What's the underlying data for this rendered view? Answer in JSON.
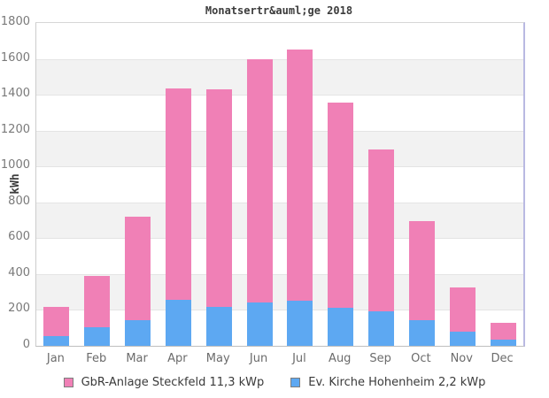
{
  "chart_data": {
    "type": "bar",
    "stacked": true,
    "title": "Monatsertr&auml;ge 2018",
    "ylabel": "kWh",
    "xlabel": "",
    "ylim": [
      0,
      1800
    ],
    "ytick_step": 200,
    "ytick_labels": [
      "0",
      "200",
      "400",
      "600",
      "800",
      "1000",
      "1200",
      "1400",
      "1600",
      "1800"
    ],
    "grid": true,
    "legend_position": "bottom",
    "categories": [
      "Jan",
      "Feb",
      "Mar",
      "Apr",
      "May",
      "Jun",
      "Jul",
      "Aug",
      "Sep",
      "Oct",
      "Nov",
      "Dec"
    ],
    "series": [
      {
        "name": "GbR-Anlage Steckfeld 11,3 kWp",
        "color": "#f080b6",
        "values": [
          160,
          285,
          575,
          1180,
          1215,
          1360,
          1400,
          1145,
          905,
          550,
          245,
          95
        ]
      },
      {
        "name": "Ev. Kirche Hohenheim 2,2 kWp",
        "color": "#5da8f2",
        "values": [
          55,
          105,
          145,
          255,
          215,
          240,
          250,
          210,
          190,
          145,
          80,
          35
        ]
      }
    ],
    "stack_bottom_to_top": [
      "Ev. Kirche Hohenheim 2,2 kWp",
      "GbR-Anlage Steckfeld 11,3 kWp"
    ],
    "stacked_totals": [
      215,
      390,
      720,
      1435,
      1430,
      1600,
      1650,
      1355,
      1095,
      695,
      325,
      130
    ]
  }
}
